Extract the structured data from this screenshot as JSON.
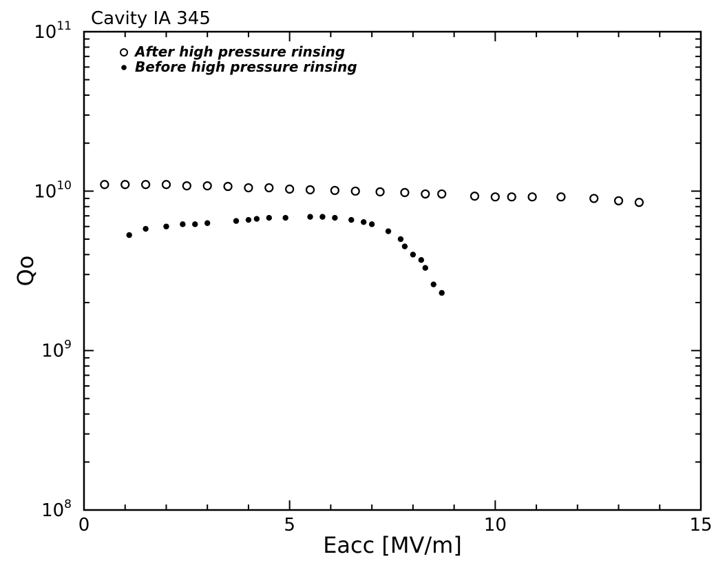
{
  "chart_data": {
    "type": "scatter",
    "title": "Cavity IA 345",
    "xlabel": "Eacc [MV/m]",
    "ylabel": "Qo",
    "xlim": [
      0,
      15
    ],
    "ylim": [
      100000000,
      100000000000
    ],
    "yscale": "log",
    "x_ticks": [
      "0",
      "5",
      "10",
      "15"
    ],
    "y_ticks": [
      {
        "base": "10",
        "exp": "8"
      },
      {
        "base": "10",
        "exp": "9"
      },
      {
        "base": "10",
        "exp": "10"
      },
      {
        "base": "10",
        "exp": "11"
      }
    ],
    "grid": false,
    "legend_position": "top-left",
    "series": [
      {
        "name": "After high pressure rinsing",
        "marker": "open-circle",
        "x": [
          0.5,
          1.0,
          1.5,
          2.0,
          2.5,
          3.0,
          3.5,
          4.0,
          4.5,
          5.0,
          5.5,
          6.1,
          6.6,
          7.2,
          7.8,
          8.3,
          8.7,
          9.5,
          10.0,
          10.4,
          10.9,
          11.6,
          12.4,
          13.0,
          13.5
        ],
        "y": [
          11000000000.0,
          11000000000.0,
          11000000000.0,
          11000000000.0,
          10800000000.0,
          10800000000.0,
          10700000000.0,
          10500000000.0,
          10500000000.0,
          10300000000.0,
          10200000000.0,
          10100000000.0,
          10000000000.0,
          9900000000.0,
          9800000000.0,
          9600000000.0,
          9600000000.0,
          9300000000.0,
          9200000000.0,
          9200000000.0,
          9200000000.0,
          9200000000.0,
          9000000000.0,
          8700000000.0,
          8500000000.0
        ]
      },
      {
        "name": "Before high pressure rinsing",
        "marker": "filled-dot",
        "x": [
          1.1,
          1.5,
          2.0,
          2.4,
          2.7,
          3.0,
          3.7,
          4.0,
          4.2,
          4.5,
          4.9,
          5.5,
          5.8,
          6.1,
          6.5,
          6.8,
          7.0,
          7.4,
          7.7,
          7.8,
          8.0,
          8.2,
          8.3,
          8.5,
          8.7
        ],
        "y": [
          5300000000.0,
          5800000000.0,
          6000000000.0,
          6200000000.0,
          6200000000.0,
          6300000000.0,
          6500000000.0,
          6600000000.0,
          6700000000.0,
          6800000000.0,
          6800000000.0,
          6900000000.0,
          6900000000.0,
          6800000000.0,
          6600000000.0,
          6400000000.0,
          6200000000.0,
          5600000000.0,
          5000000000.0,
          4500000000.0,
          4000000000.0,
          3700000000.0,
          3300000000.0,
          2600000000.0,
          2300000000.0
        ]
      }
    ]
  }
}
